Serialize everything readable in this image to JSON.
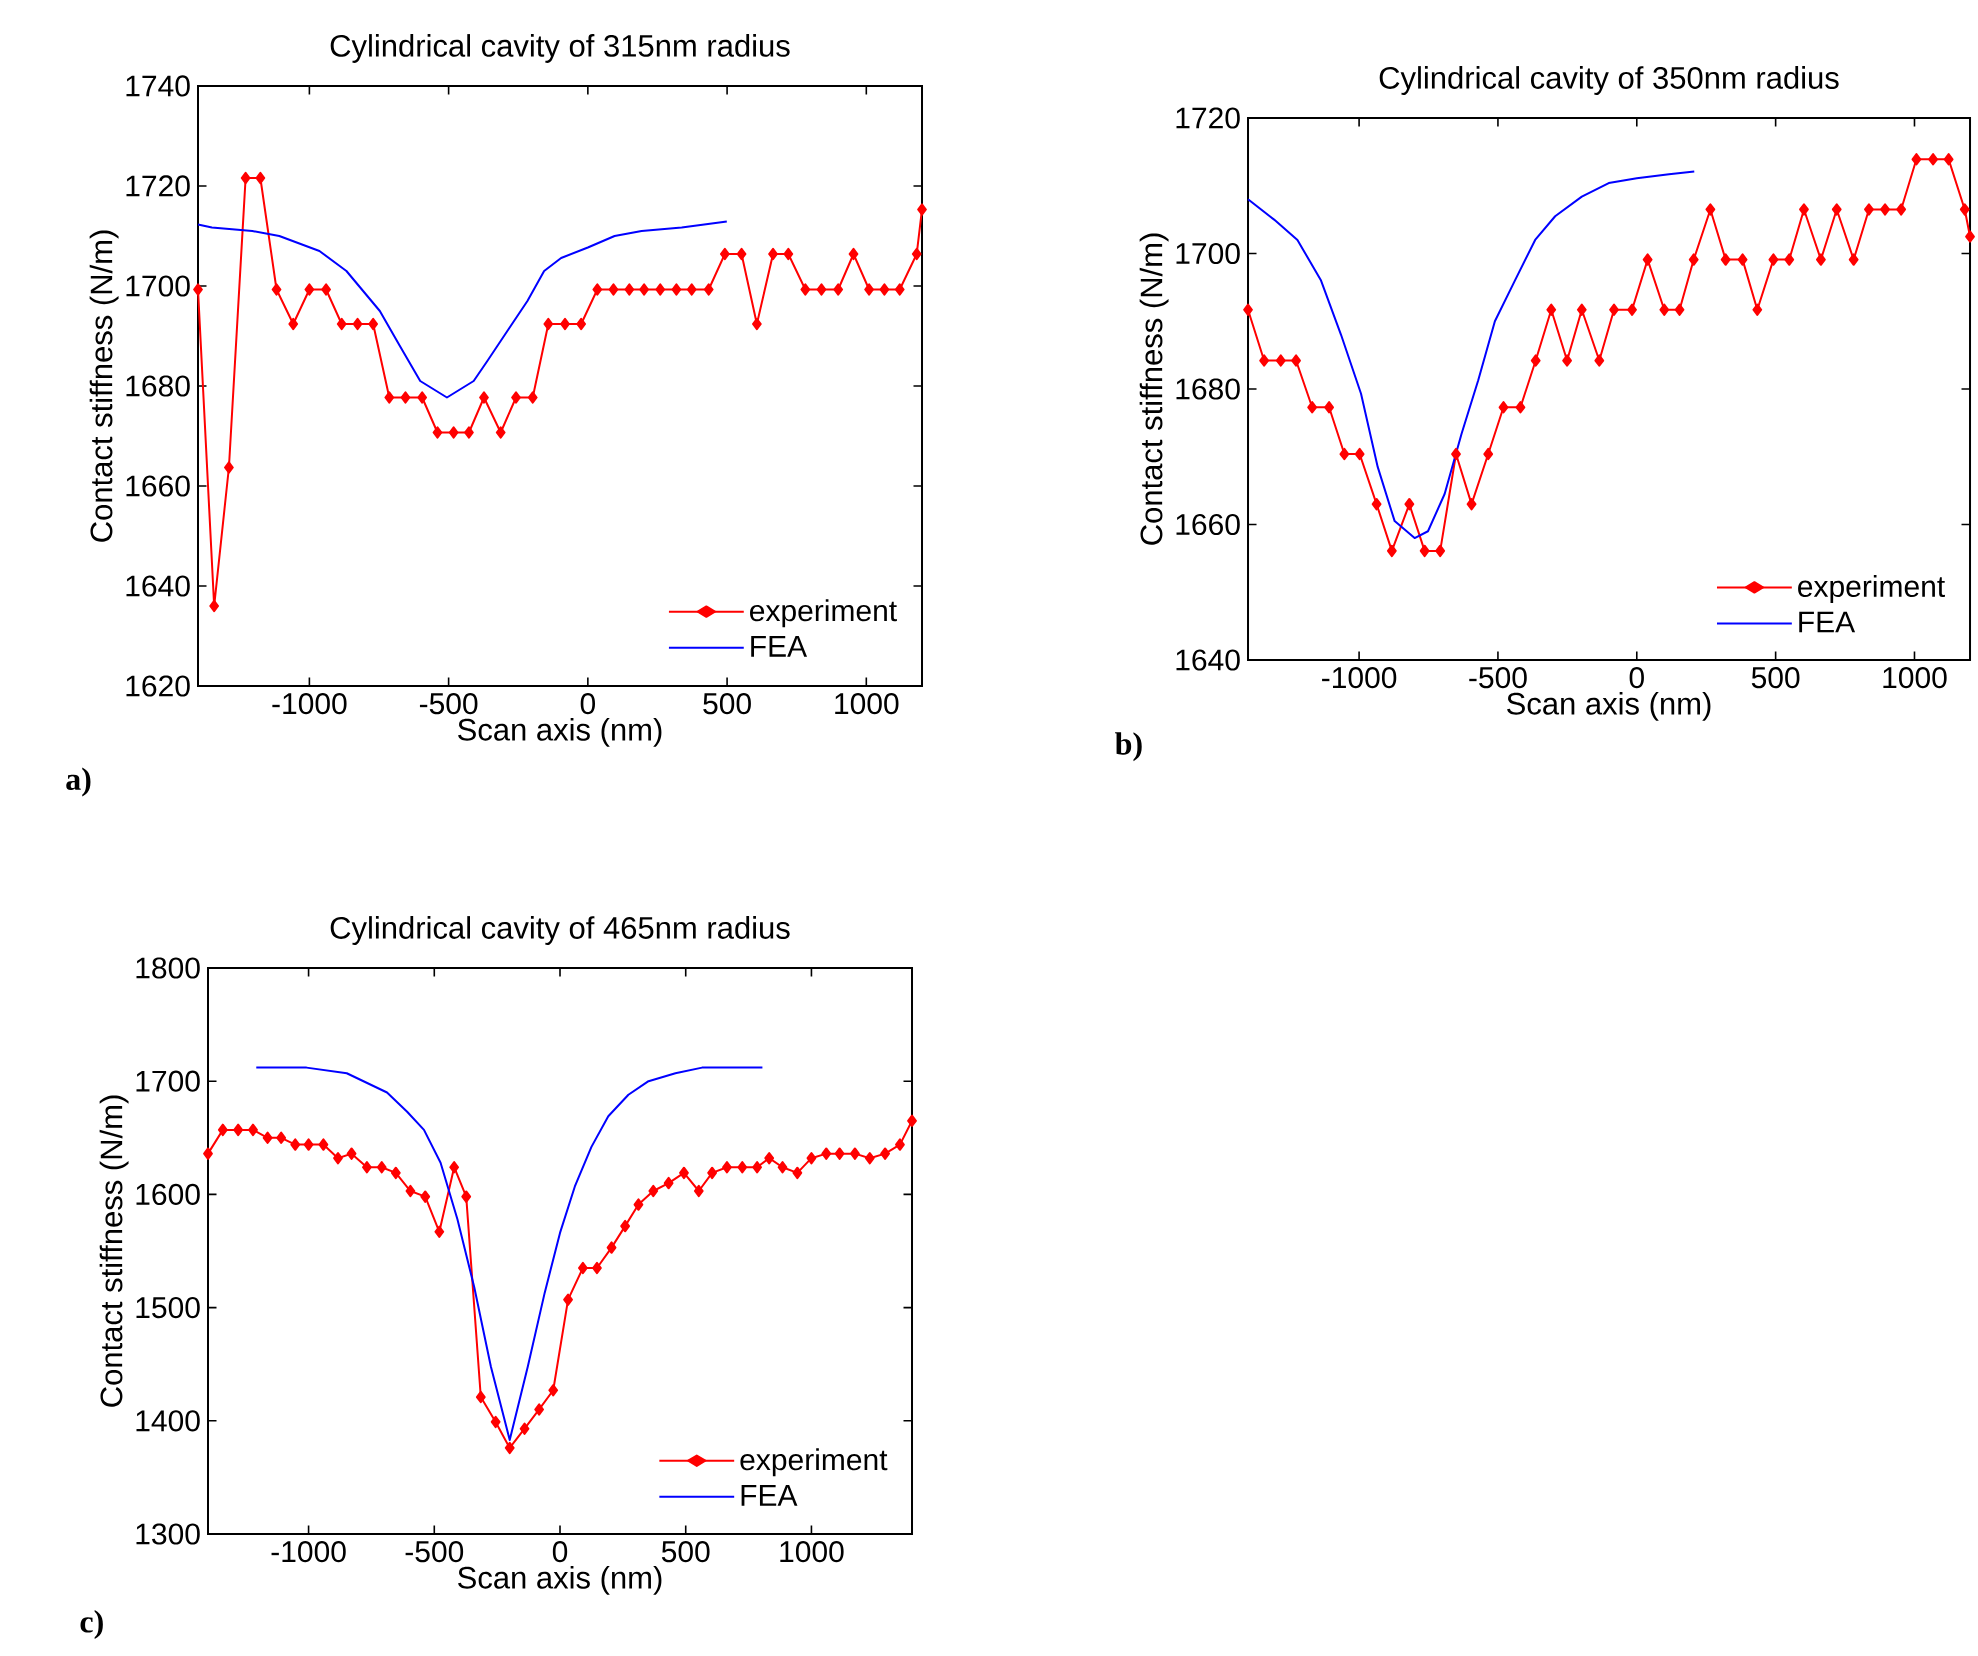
{
  "chart_data": [
    {
      "type": "line",
      "title": "Cylindrical cavity of 315nm radius",
      "xlabel": "Scan axis (nm)",
      "ylabel": "Contact stiffness (N/m)",
      "annotations": [
        "a)"
      ],
      "xlim": [
        -1400,
        1200
      ],
      "ylim": [
        1620,
        1740
      ],
      "xticks": [
        -1000,
        -500,
        0,
        500,
        1000
      ],
      "yticks": [
        1620,
        1640,
        1660,
        1680,
        1700,
        1720,
        1740
      ],
      "legend": "bottom right",
      "series": [
        {
          "name": "experiment",
          "color": "#ff0000",
          "marker": "diamond",
          "x": [
            -1400,
            -1342,
            -1289,
            -1229,
            -1176,
            -1118,
            -1058,
            -1000,
            -940,
            -884,
            -827,
            -771,
            -713,
            -655,
            -595,
            -540,
            -482,
            -427,
            -373,
            -313,
            -258,
            -198,
            -142,
            -82,
            -24,
            34,
            92,
            149,
            202,
            260,
            318,
            373,
            434,
            492,
            552,
            607,
            665,
            720,
            781,
            839,
            899,
            954,
            1010,
            1065,
            1120,
            1181,
            1200
          ],
          "values": [
            1699.3,
            1636,
            1663.7,
            1721.6,
            1721.6,
            1699.3,
            1692.4,
            1699.3,
            1699.3,
            1692.4,
            1692.4,
            1692.4,
            1677.7,
            1677.7,
            1677.7,
            1670.7,
            1670.7,
            1670.7,
            1677.7,
            1670.7,
            1677.7,
            1677.7,
            1692.4,
            1692.4,
            1692.4,
            1699.3,
            1699.3,
            1699.3,
            1699.3,
            1699.3,
            1699.3,
            1699.3,
            1699.3,
            1706.4,
            1706.4,
            1692.4,
            1706.4,
            1706.4,
            1699.3,
            1699.3,
            1699.3,
            1706.4,
            1699.3,
            1699.3,
            1699.3,
            1706.4,
            1715.3
          ]
        },
        {
          "name": "FEA",
          "color": "#0000ff",
          "marker": "none",
          "x": [
            -1400,
            -1350,
            -1205,
            -1108,
            -964,
            -867,
            -747,
            -675,
            -602,
            -506,
            -410,
            -361,
            -289,
            -217,
            -157,
            -96,
            0,
            96,
            193,
            337,
            499
          ],
          "values": [
            1712.3,
            1711.7,
            1711,
            1710,
            1707,
            1703,
            1695,
            1688,
            1681,
            1677.7,
            1681,
            1685,
            1691,
            1697,
            1703,
            1705.6,
            1707.7,
            1710,
            1711,
            1711.7,
            1712.9
          ]
        }
      ]
    },
    {
      "type": "line",
      "title": "Cylindrical cavity of 350nm radius",
      "xlabel": "Scan axis (nm)",
      "ylabel": "Contact stiffness (N/m)",
      "annotations": [
        "b)"
      ],
      "xlim": [
        -1400,
        1200
      ],
      "ylim": [
        1640,
        1720
      ],
      "xticks": [
        -1000,
        -500,
        0,
        500,
        1000
      ],
      "yticks": [
        1640,
        1660,
        1680,
        1700,
        1720
      ],
      "legend": "bottom right",
      "series": [
        {
          "name": "experiment",
          "color": "#ff0000",
          "marker": "diamond",
          "x": [
            -1400,
            -1342,
            -1282,
            -1227,
            -1169,
            -1108,
            -1053,
            -998,
            -937,
            -882,
            -819,
            -764,
            -708,
            -651,
            -595,
            -535,
            -480,
            -419,
            -364,
            -308,
            -251,
            -198,
            -135,
            -82,
            -17,
            39,
            99,
            154,
            205,
            265,
            320,
            381,
            434,
            492,
            549,
            602,
            663,
            720,
            781,
            836,
            894,
            952,
            1007,
            1067,
            1123,
            1181,
            1200
          ],
          "values": [
            1691.7,
            1684.2,
            1684.2,
            1684.2,
            1677.3,
            1677.3,
            1670.4,
            1670.4,
            1663,
            1656.1,
            1663,
            1656.1,
            1656.1,
            1670.4,
            1663,
            1670.4,
            1677.3,
            1677.3,
            1684.2,
            1691.7,
            1684.2,
            1691.7,
            1684.2,
            1691.7,
            1691.7,
            1699.1,
            1691.7,
            1691.7,
            1699.1,
            1706.5,
            1699.1,
            1699.1,
            1691.7,
            1699.1,
            1699.1,
            1706.5,
            1699.1,
            1706.5,
            1699.1,
            1706.5,
            1706.5,
            1706.5,
            1713.9,
            1713.9,
            1713.9,
            1706.5,
            1702.5
          ]
        },
        {
          "name": "FEA",
          "color": "#0000ff",
          "marker": "none",
          "x": [
            -1400,
            -1306,
            -1222,
            -1137,
            -1065,
            -993,
            -933,
            -872,
            -800,
            -752,
            -692,
            -631,
            -571,
            -511,
            -439,
            -366,
            -294,
            -198,
            -101,
            0,
            116,
            207
          ],
          "values": [
            1708,
            1705,
            1702,
            1696,
            1688,
            1679.3,
            1668.5,
            1660.5,
            1658,
            1659,
            1664.5,
            1673.4,
            1681.3,
            1690,
            1696,
            1702,
            1705.5,
            1708.4,
            1710.4,
            1711.1,
            1711.7,
            1712.1
          ]
        }
      ]
    },
    {
      "type": "line",
      "title": "Cylindrical cavity of 465nm radius",
      "xlabel": "Scan axis (nm)",
      "ylabel": "Contact stiffness (N/m)",
      "annotations": [
        "c)"
      ],
      "xlim": [
        -1400,
        1400
      ],
      "ylim": [
        1300,
        1800
      ],
      "xticks": [
        -1000,
        -500,
        0,
        500,
        1000
      ],
      "yticks": [
        1300,
        1400,
        1500,
        1600,
        1700,
        1800
      ],
      "legend": "bottom right",
      "series": [
        {
          "name": "experiment",
          "color": "#ff0000",
          "marker": "diamond",
          "x": [
            -1400,
            -1341,
            -1280,
            -1221,
            -1163,
            -1109,
            -1053,
            -1000,
            -941,
            -883,
            -829,
            -768,
            -709,
            -653,
            -595,
            -536,
            -480,
            -421,
            -373,
            -315,
            -256,
            -200,
            -141,
            -83,
            -27,
            32,
            91,
            147,
            205,
            259,
            312,
            371,
            432,
            493,
            552,
            605,
            664,
            725,
            784,
            832,
            885,
            944,
            1000,
            1059,
            1112,
            1173,
            1232,
            1293,
            1352,
            1400
          ],
          "values": [
            1636,
            1657,
            1657,
            1657,
            1650,
            1650,
            1644,
            1644,
            1644,
            1632,
            1636,
            1624,
            1624,
            1619,
            1603,
            1598,
            1567,
            1624,
            1598,
            1421,
            1399,
            1376,
            1393,
            1410,
            1427,
            1507,
            1535,
            1535,
            1553,
            1572,
            1591,
            1603,
            1610,
            1619,
            1603,
            1619,
            1624,
            1624,
            1624,
            1632,
            1624,
            1619,
            1632,
            1636,
            1636,
            1636,
            1632,
            1636,
            1644,
            1665
          ]
        },
        {
          "name": "FEA",
          "color": "#0000ff",
          "marker": "none",
          "x": [
            -1208,
            -1008,
            -848,
            -688,
            -608,
            -541,
            -475,
            -408,
            -341,
            -275,
            -200,
            -128,
            -61,
            0,
            59,
            125,
            192,
            272,
            352,
            459,
            565,
            805
          ],
          "values": [
            1712,
            1712,
            1707,
            1690,
            1673,
            1657,
            1628,
            1578,
            1518,
            1448,
            1383,
            1448,
            1513,
            1566,
            1607,
            1642,
            1669,
            1688,
            1700,
            1707,
            1712,
            1712
          ]
        }
      ]
    }
  ]
}
